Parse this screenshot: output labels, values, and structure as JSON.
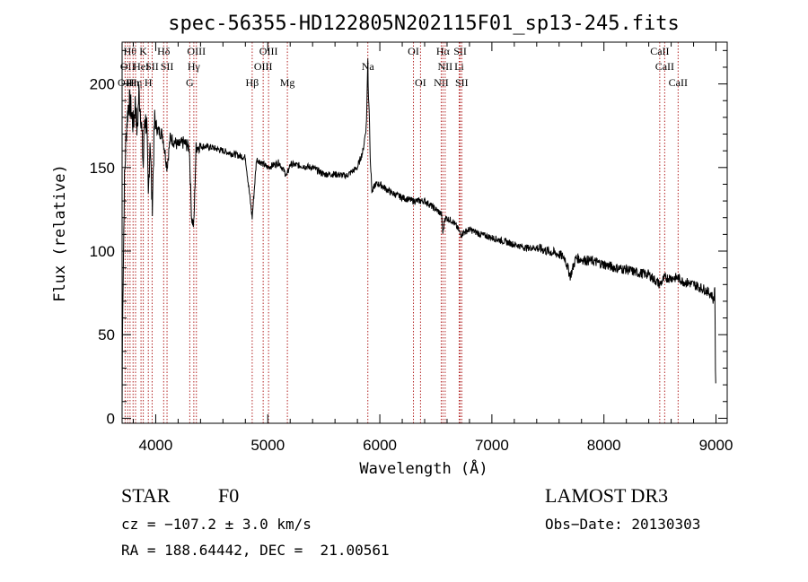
{
  "chart_data": {
    "type": "line",
    "title": "spec-56355-HD122805N202115F01_sp13-245.fits",
    "xlabel": "Wavelength (Å)",
    "ylabel": "Flux (relative)",
    "xlim": [
      3700,
      9100
    ],
    "ylim": [
      -3,
      225
    ],
    "xticks": [
      4000,
      5000,
      6000,
      7000,
      8000,
      9000
    ],
    "yticks": [
      0,
      50,
      100,
      150,
      200
    ],
    "series": [
      {
        "name": "spectrum",
        "x": [
          3700,
          3705,
          3710,
          3720,
          3740,
          3760,
          3780,
          3800,
          3820,
          3835,
          3850,
          3870,
          3889,
          3900,
          3920,
          3934,
          3950,
          3968,
          3990,
          4020,
          4060,
          4101,
          4130,
          4200,
          4250,
          4300,
          4320,
          4340,
          4360,
          4400,
          4500,
          4600,
          4700,
          4800,
          4861,
          4900,
          5000,
          5100,
          5170,
          5200,
          5300,
          5400,
          5500,
          5600,
          5700,
          5800,
          5850,
          5880,
          5893,
          5897,
          5905,
          5915,
          5930,
          5960,
          6000,
          6100,
          6200,
          6300,
          6400,
          6500,
          6550,
          6563,
          6580,
          6650,
          6700,
          6720,
          6800,
          6900,
          7000,
          7100,
          7200,
          7300,
          7400,
          7500,
          7600,
          7650,
          7700,
          7750,
          7800,
          7900,
          8000,
          8100,
          8200,
          8300,
          8400,
          8498,
          8542,
          8600,
          8662,
          8700,
          8800,
          8900,
          8960,
          8980,
          8990,
          8995,
          9000
        ],
        "y": [
          5,
          70,
          85,
          140,
          175,
          190,
          185,
          175,
          190,
          170,
          195,
          180,
          150,
          180,
          175,
          130,
          170,
          125,
          178,
          172,
          170,
          150,
          168,
          163,
          165,
          162,
          120,
          115,
          162,
          163,
          162,
          160,
          158,
          156,
          120,
          155,
          150,
          153,
          145,
          152,
          151,
          150,
          146,
          146,
          145,
          150,
          160,
          175,
          215,
          195,
          185,
          155,
          135,
          140,
          140,
          135,
          132,
          130,
          130,
          125,
          122,
          110,
          120,
          118,
          113,
          110,
          113,
          110,
          108,
          106,
          104,
          102,
          102,
          100,
          98,
          96,
          85,
          96,
          95,
          94,
          92,
          90,
          89,
          87,
          86,
          80,
          84,
          84,
          84,
          82,
          80,
          77,
          74,
          70,
          80,
          30,
          10
        ]
      }
    ],
    "line_markers": [
      {
        "wavelength": 3727,
        "label": "OII",
        "row": 2
      },
      {
        "wavelength": 3750,
        "label": "OII",
        "row": 1
      },
      {
        "wavelength": 3771,
        "label": "Hθ",
        "row": 0
      },
      {
        "wavelength": 3798,
        "label": "Hη",
        "row": 2
      },
      {
        "wavelength": 3820,
        "label": "Hη",
        "row": 2
      },
      {
        "wavelength": 3869,
        "label": "HeI",
        "row": 1
      },
      {
        "wavelength": 3889,
        "label": "K",
        "row": 0
      },
      {
        "wavelength": 3934,
        "label": "H",
        "row": 2
      },
      {
        "wavelength": 3968,
        "label": "SII",
        "row": 1
      },
      {
        "wavelength": 4071,
        "label": "Hδ",
        "row": 0
      },
      {
        "wavelength": 4101,
        "label": "SII",
        "row": 1
      },
      {
        "wavelength": 4304,
        "label": "G",
        "row": 2
      },
      {
        "wavelength": 4340,
        "label": "Hγ",
        "row": 1
      },
      {
        "wavelength": 4363,
        "label": "OIII",
        "row": 0
      },
      {
        "wavelength": 4861,
        "label": "Hβ",
        "row": 2
      },
      {
        "wavelength": 4959,
        "label": "OIII",
        "row": 1
      },
      {
        "wavelength": 5007,
        "label": "OIII",
        "row": 0
      },
      {
        "wavelength": 5175,
        "label": "Mg",
        "row": 2
      },
      {
        "wavelength": 5893,
        "label": "Na",
        "row": 1
      },
      {
        "wavelength": 6300,
        "label": "OI",
        "row": 0
      },
      {
        "wavelength": 6363,
        "label": "OI",
        "row": 2
      },
      {
        "wavelength": 6548,
        "label": "NII",
        "row": 2
      },
      {
        "wavelength": 6563,
        "label": "Hα",
        "row": 0
      },
      {
        "wavelength": 6583,
        "label": "NII",
        "row": 1
      },
      {
        "wavelength": 6708,
        "label": "Li",
        "row": 1
      },
      {
        "wavelength": 6717,
        "label": "SII",
        "row": 0
      },
      {
        "wavelength": 6731,
        "label": "SII",
        "row": 2
      },
      {
        "wavelength": 8498,
        "label": "CaII",
        "row": 0
      },
      {
        "wavelength": 8542,
        "label": "CaII",
        "row": 1
      },
      {
        "wavelength": 8662,
        "label": "CaII",
        "row": 2
      }
    ],
    "grid": false
  },
  "info": {
    "object_class": "STAR",
    "subclass": "F0",
    "survey": "LAMOST DR3",
    "cz": "cz = −107.2 ± 3.0 km/s",
    "obs_date": "Obs−Date: 20130303",
    "coords": "RA = 188.64442, DEC =  21.00561"
  },
  "colors": {
    "spectrum": "#000000",
    "marker": "#b22222",
    "axis": "#000000"
  }
}
